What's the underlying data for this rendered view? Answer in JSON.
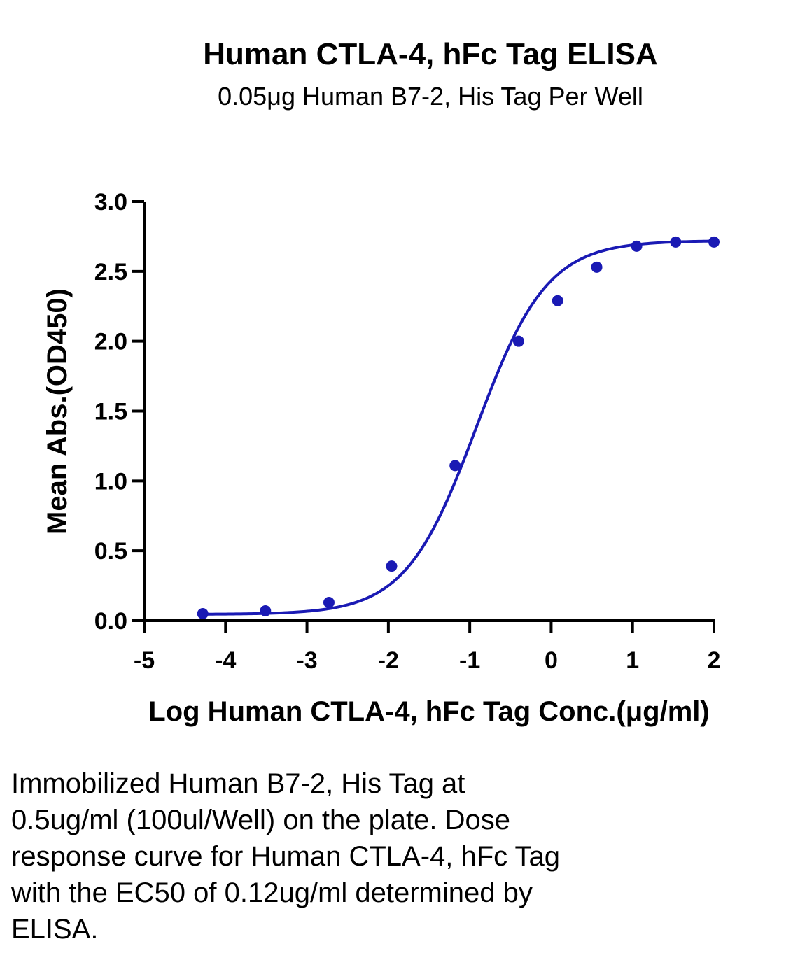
{
  "chart_data": {
    "type": "scatter",
    "title": "Human CTLA-4, hFc Tag ELISA",
    "subtitle": "0.05μg Human B7-2, His Tag Per Well",
    "xlabel": "Log Human CTLA-4, hFc Tag Conc.(μg/ml)",
    "ylabel": "Mean Abs.(OD450)",
    "xlim": [
      -5,
      2
    ],
    "ylim": [
      0,
      3
    ],
    "x_ticks": [
      "-5",
      "-4",
      "-3",
      "-2",
      "-1",
      "0",
      "1",
      "2"
    ],
    "y_ticks": [
      "0.0",
      "0.5",
      "1.0",
      "1.5",
      "2.0",
      "2.5",
      "3.0"
    ],
    "grid": false,
    "colors": {
      "series": "#1a1ab4",
      "axis": "#000000"
    },
    "series": [
      {
        "points": [
          {
            "x": -4.28,
            "y": 0.05
          },
          {
            "x": -3.51,
            "y": 0.07
          },
          {
            "x": -2.73,
            "y": 0.13
          },
          {
            "x": -1.96,
            "y": 0.39
          },
          {
            "x": -1.18,
            "y": 1.11
          },
          {
            "x": -0.4,
            "y": 2.0
          },
          {
            "x": 0.08,
            "y": 2.29
          },
          {
            "x": 0.56,
            "y": 2.53
          },
          {
            "x": 1.05,
            "y": 2.68
          },
          {
            "x": 1.53,
            "y": 2.71
          },
          {
            "x": 2.0,
            "y": 2.71
          }
        ],
        "fit": {
          "model": "4PL",
          "bottom": 0.045,
          "top": 2.72,
          "logEC50": -0.92,
          "hill": 1.0
        }
      }
    ]
  },
  "caption": {
    "lines": [
      "Immobilized Human B7-2, His Tag at",
      "0.5ug/ml (100ul/Well) on the plate. Dose",
      "response curve for Human CTLA-4, hFc Tag",
      "with the EC50 of 0.12ug/ml determined by",
      "ELISA."
    ]
  }
}
